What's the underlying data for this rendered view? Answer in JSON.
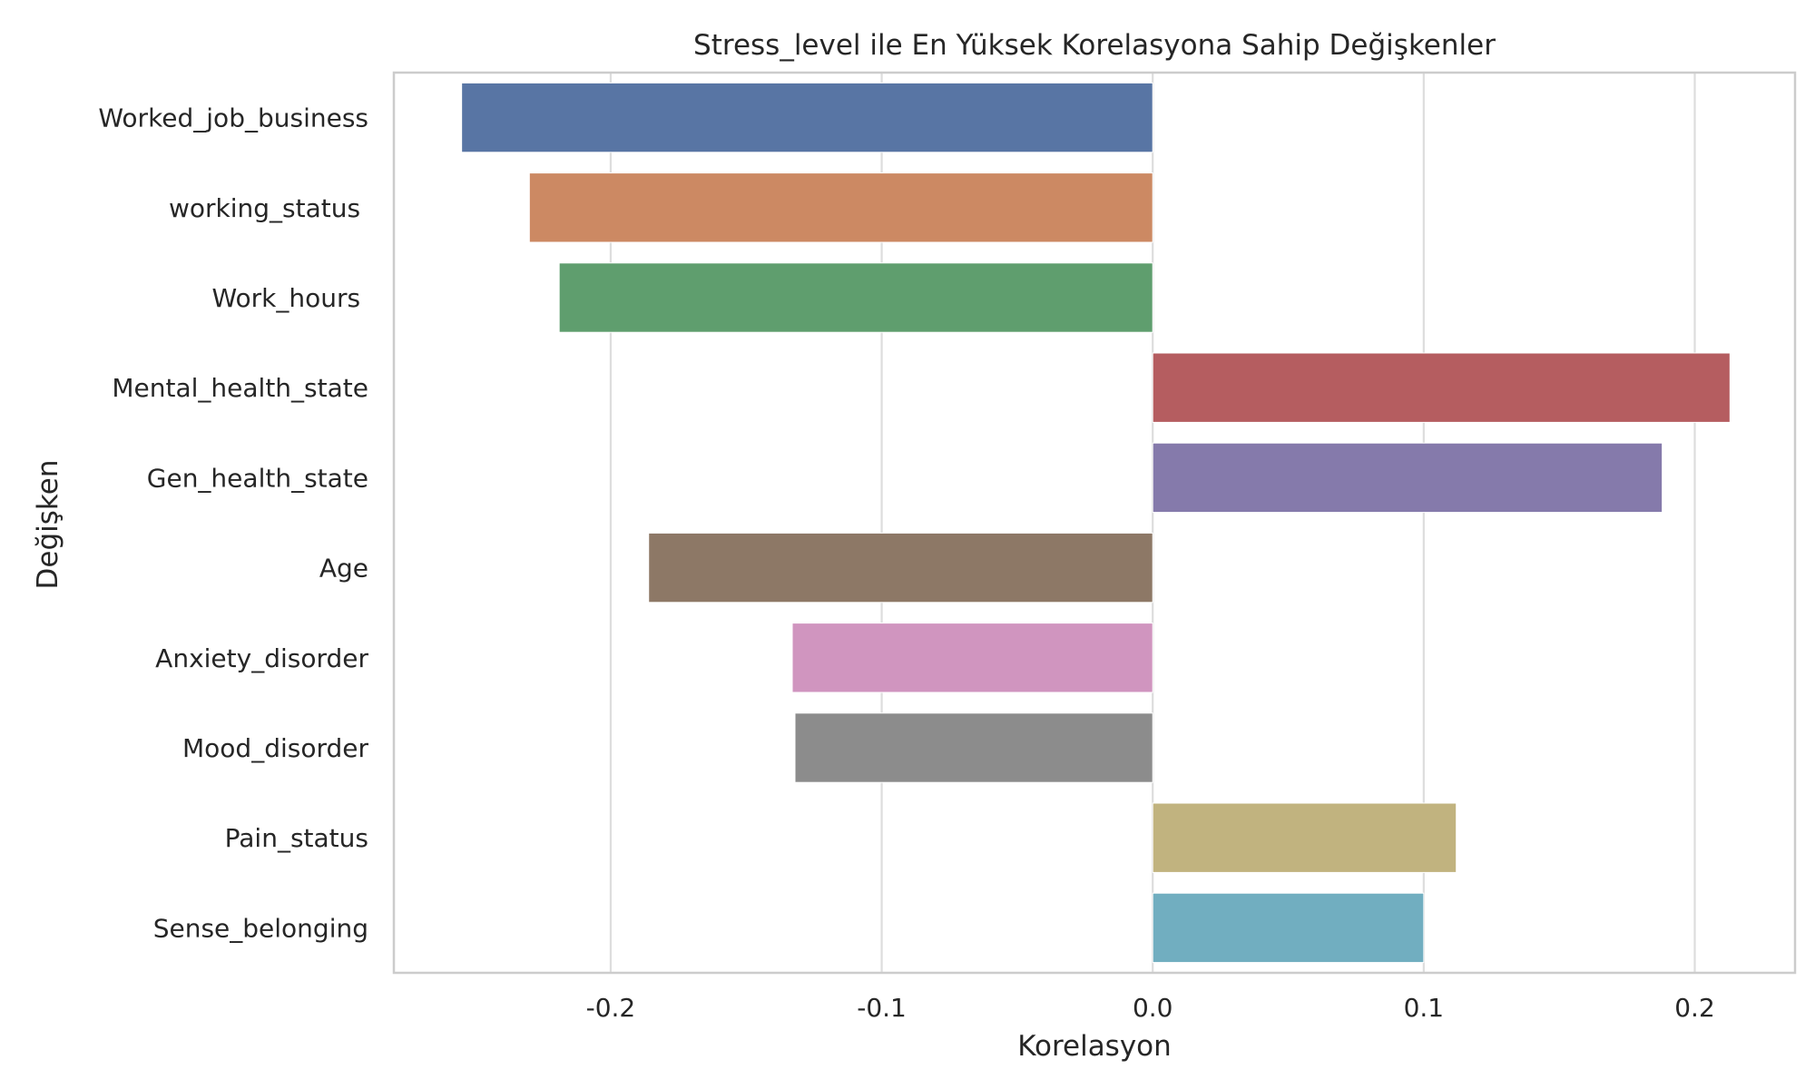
{
  "chart_data": {
    "type": "bar",
    "orientation": "horizontal",
    "title": "Stress_level ile En Yüksek Korelasyona Sahip Değişkenler",
    "xlabel": "Korelasyon",
    "ylabel": "Değişken",
    "xlim": [
      -0.28,
      0.237
    ],
    "xticks": [
      -0.2,
      -0.1,
      0.0,
      0.1,
      0.2
    ],
    "xtick_labels": [
      "-0.2",
      "-0.1",
      "0.0",
      "0.1",
      "0.2"
    ],
    "grid": true,
    "categories": [
      "Worked_job_business",
      "working_status ",
      "Work_hours ",
      "Mental_health_state",
      "Gen_health_state",
      "Age",
      "Anxiety_disorder",
      "Mood_disorder",
      "Pain_status",
      "Sense_belonging"
    ],
    "values": [
      -0.255,
      -0.23,
      -0.219,
      0.213,
      0.188,
      -0.186,
      -0.133,
      -0.132,
      0.112,
      0.1
    ],
    "colors": [
      "#5875a4",
      "#cc8963",
      "#5f9e6e",
      "#b55d60",
      "#857aab",
      "#8d7866",
      "#d095bf",
      "#8c8c8c",
      "#c1b37f",
      "#71aec0"
    ]
  }
}
